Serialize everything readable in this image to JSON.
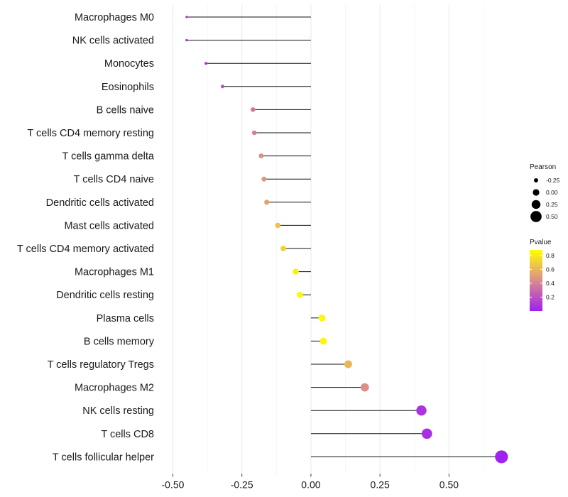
{
  "chart_data": {
    "type": "lollipop",
    "categories": [
      "Macrophages M0",
      "NK cells activated",
      "Monocytes",
      "Eosinophils",
      "B cells naive",
      "T cells CD4 memory resting",
      "T cells gamma delta",
      "T cells CD4 naive",
      "Dendritic cells activated",
      "Mast cells activated",
      "T cells CD4 memory activated",
      "Macrophages M1",
      "Dendritic cells resting",
      "Plasma cells",
      "B cells memory",
      "T cells regulatory  Tregs ",
      "Macrophages M2",
      "NK cells resting",
      "T cells CD8",
      "T cells follicular helper"
    ],
    "pearson": [
      -0.45,
      -0.45,
      -0.38,
      -0.32,
      -0.21,
      -0.205,
      -0.18,
      -0.17,
      -0.16,
      -0.12,
      -0.1,
      -0.055,
      -0.04,
      0.04,
      0.045,
      0.135,
      0.195,
      0.4,
      0.42,
      0.69
    ],
    "pvalue": [
      0.05,
      0.05,
      0.1,
      0.2,
      0.35,
      0.38,
      0.45,
      0.48,
      0.52,
      0.65,
      0.7,
      0.82,
      0.85,
      0.85,
      0.85,
      0.6,
      0.45,
      0.08,
      0.06,
      0.01
    ],
    "x_ticks": [
      "-0.50",
      "-0.25",
      "0.00",
      "0.25",
      "0.50"
    ],
    "x_tick_values": [
      -0.5,
      -0.25,
      0,
      0.25,
      0.5
    ],
    "xlim": [
      -0.55,
      0.72
    ],
    "xlabel": "",
    "ylabel": "",
    "legend_size": {
      "title": "Pearson",
      "labels": [
        "-0.25",
        "0.00",
        "0.25",
        "0.50"
      ],
      "values": [
        -0.25,
        0,
        0.25,
        0.5
      ]
    },
    "legend_color": {
      "title": "Pvalue",
      "labels": [
        "0.8",
        "0.6",
        "0.4",
        "0.2"
      ],
      "values": [
        0.8,
        0.6,
        0.4,
        0.2
      ],
      "low_color": "#a020f0",
      "mid_color": "#dc8c8c",
      "high_color": "#ffff00",
      "range": [
        0.0,
        0.88
      ]
    }
  }
}
